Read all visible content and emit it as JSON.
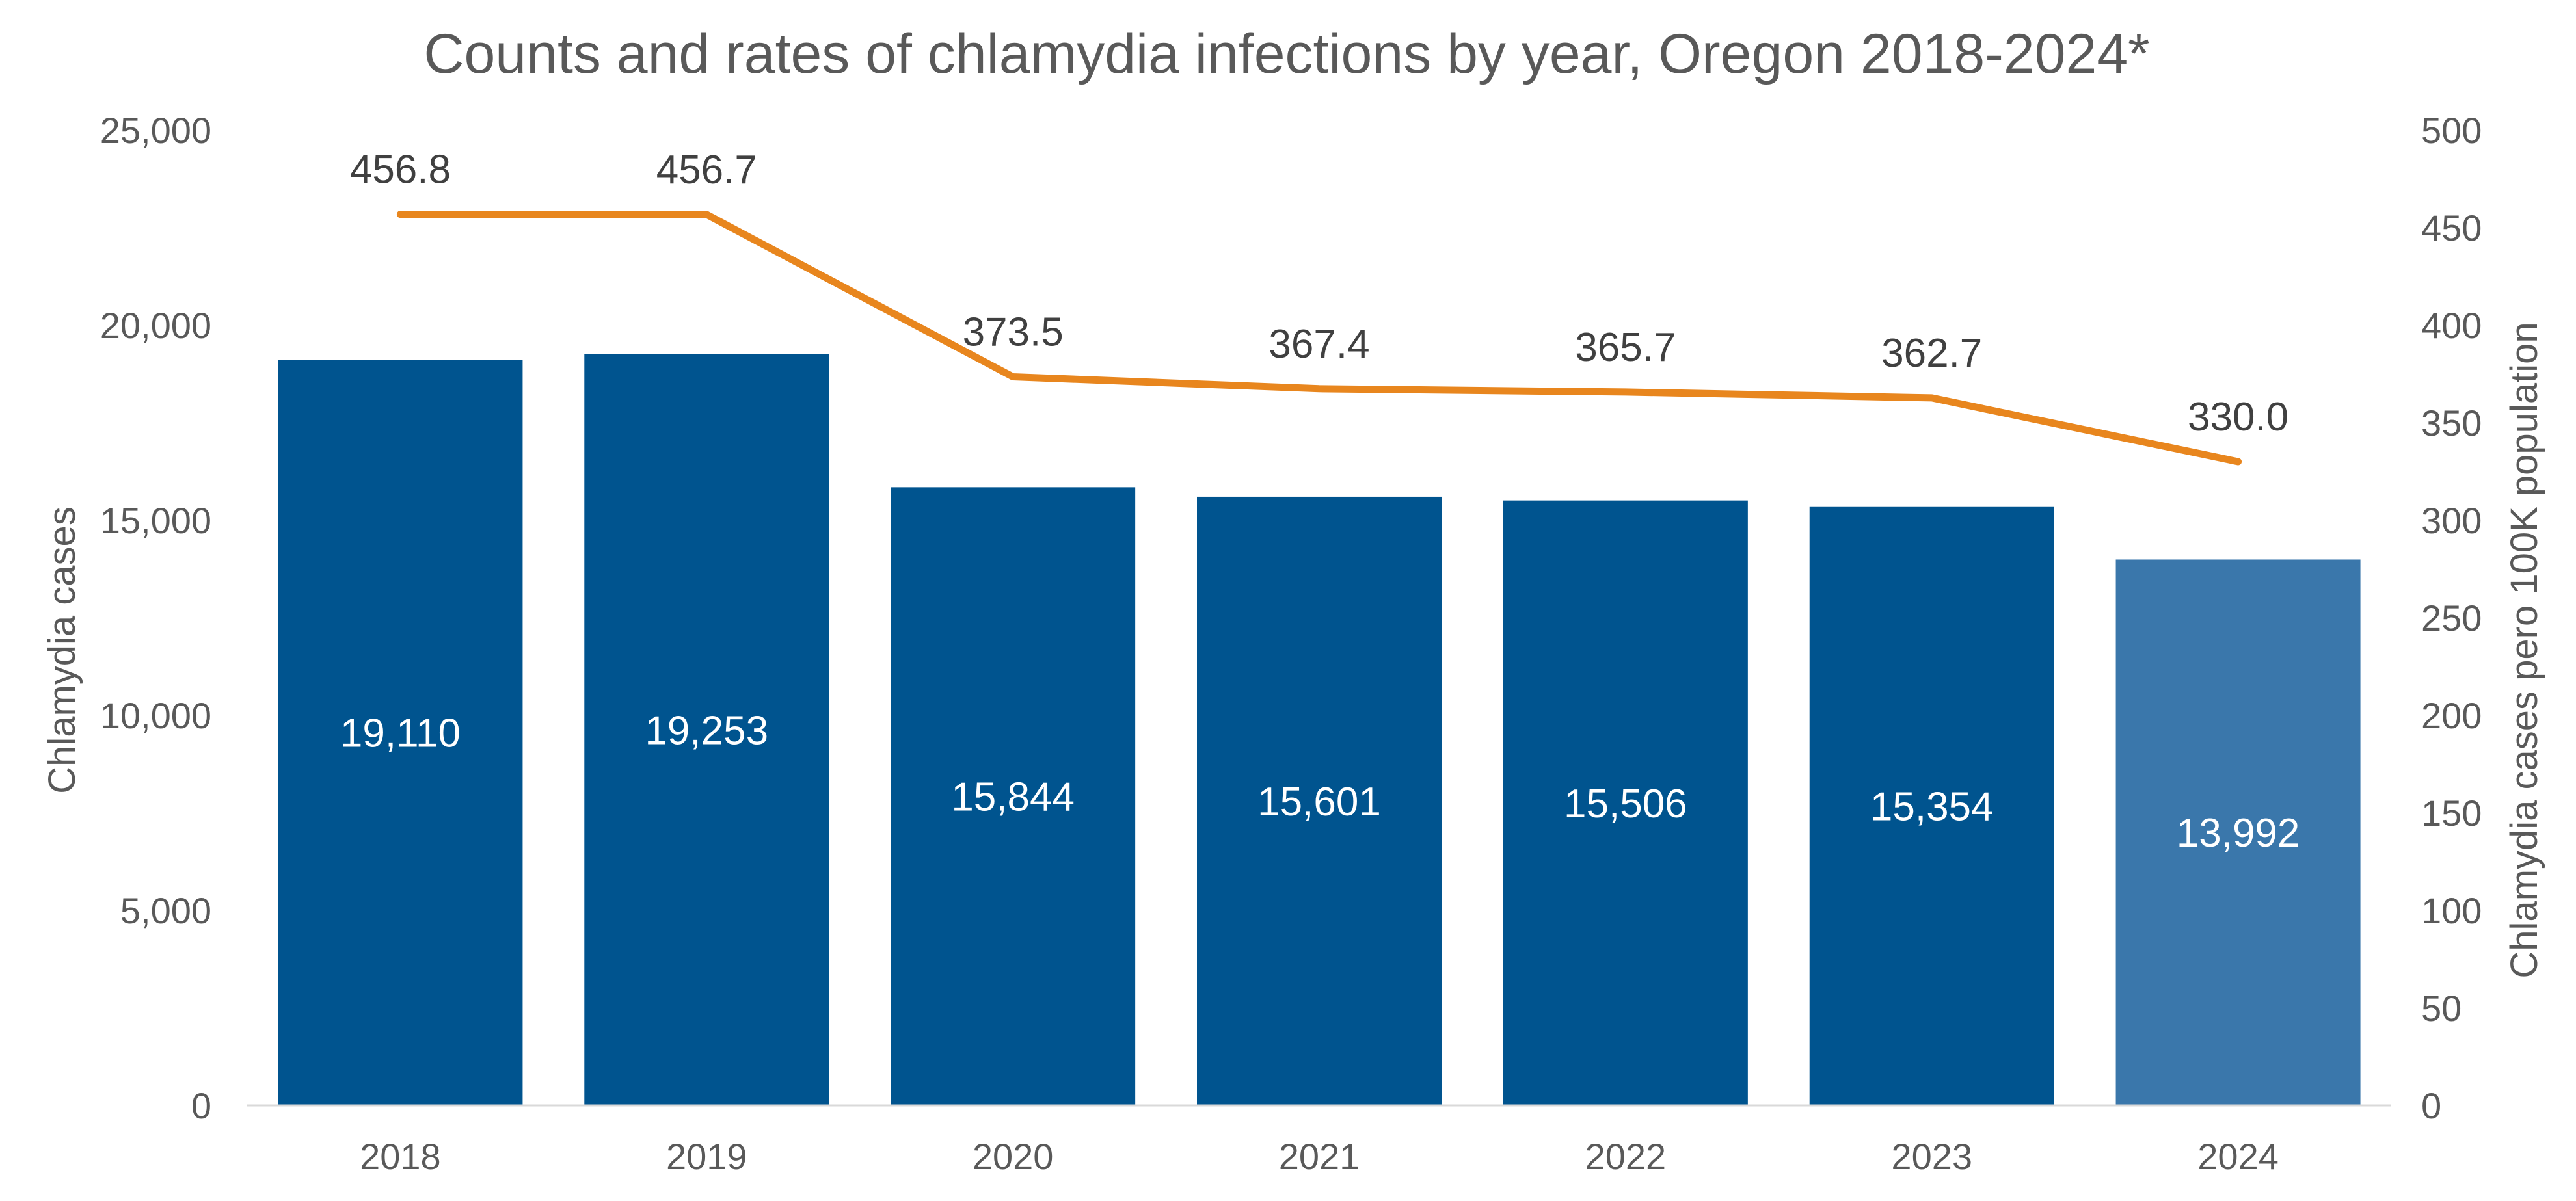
{
  "chart_data": {
    "type": "bar",
    "title": "Counts and rates of chlamydia infections by year, Oregon 2018-2024*",
    "categories": [
      "2018",
      "2019",
      "2020",
      "2021",
      "2022",
      "2023",
      "2024"
    ],
    "series": [
      {
        "name": "Chlamydia cases",
        "type": "bar",
        "axis": "left",
        "values": [
          19110,
          19253,
          15844,
          15601,
          15506,
          15354,
          13992
        ],
        "labels": [
          "19,110",
          "19,253",
          "15,844",
          "15,601",
          "15,506",
          "15,354",
          "13,992"
        ],
        "colors": [
          "#00548f",
          "#00548f",
          "#00548f",
          "#00548f",
          "#00548f",
          "#00548f",
          "#3a77ab"
        ]
      },
      {
        "name": "Chlamydia cases pero 100K population",
        "type": "line",
        "axis": "right",
        "values": [
          456.8,
          456.7,
          373.5,
          367.4,
          365.7,
          362.7,
          330.0
        ],
        "labels": [
          "456.8",
          "456.7",
          "373.5",
          "367.4",
          "365.7",
          "362.7",
          "330.0"
        ],
        "color": "#e8861e"
      }
    ],
    "y_left": {
      "label": "Chlamydia cases",
      "ylim": [
        0,
        25000
      ],
      "ticks": [
        0,
        5000,
        10000,
        15000,
        20000,
        25000
      ],
      "tick_labels": [
        "0",
        "5,000",
        "10,000",
        "15,000",
        "20,000",
        "25,000"
      ]
    },
    "y_right": {
      "label": "Chlamydia cases pero 100K population",
      "ylim": [
        0,
        500
      ],
      "ticks": [
        0,
        50,
        100,
        150,
        200,
        250,
        300,
        350,
        400,
        450,
        500
      ],
      "tick_labels": [
        "0",
        "50",
        "100",
        "150",
        "200",
        "250",
        "300",
        "350",
        "400",
        "450",
        "500"
      ]
    },
    "xlabel": "",
    "grid": false,
    "legend": "none"
  }
}
